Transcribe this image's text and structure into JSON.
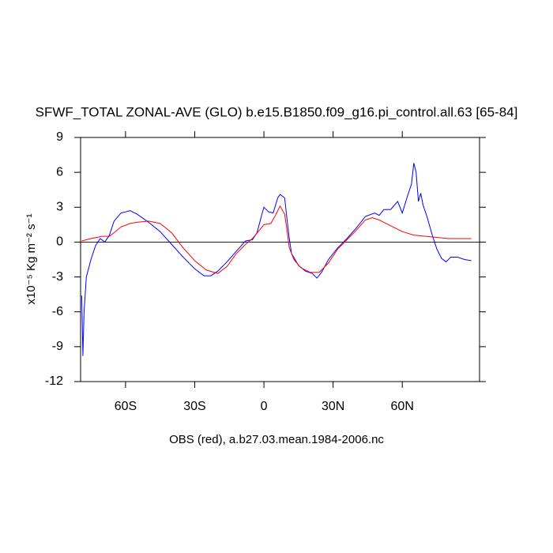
{
  "chart_data": {
    "type": "line",
    "title": "SFWF_TOTAL ZONAL-AVE (GLO) b.e15.B1850.f09_g16.pi_control.all.63 [65-84]",
    "xlabel": "OBS (red), a.b27.03.mean.1984-2006.nc",
    "ylabel": "x10⁻⁵ Kg m⁻² s⁻¹",
    "xlim": [
      -79.5,
      93.5
    ],
    "xticks": [
      {
        "value": -60,
        "label": "60S"
      },
      {
        "value": -30,
        "label": "30S"
      },
      0,
      {
        "value": 30,
        "label": "30N"
      },
      {
        "value": 60,
        "label": "60N"
      }
    ],
    "ylim": [
      -12,
      9
    ],
    "yticks": [
      -12,
      -9,
      -6,
      -3,
      0,
      3,
      6,
      9
    ],
    "zero_line": true,
    "series": [
      {
        "color": "#0000ff",
        "x": [
          -79,
          -78.5,
          -78,
          -77,
          -75,
          -73,
          -71,
          -69,
          -67,
          -65,
          -62,
          -58,
          -55,
          -50,
          -45,
          -40,
          -35,
          -30,
          -26,
          -23,
          -20,
          -16,
          -12,
          -8,
          -5,
          -3,
          -1,
          0,
          2,
          4,
          6,
          7,
          9,
          10,
          11,
          12,
          15,
          18,
          21,
          23,
          25,
          28,
          32,
          36,
          40,
          44,
          48,
          50,
          52,
          55,
          58,
          60,
          62,
          64,
          65,
          66,
          67,
          68,
          69,
          71,
          73,
          75,
          77,
          79,
          81,
          84,
          87,
          90
        ],
        "values": [
          -4.6,
          -9.8,
          -6,
          -3,
          -1.5,
          -0.3,
          0.3,
          0,
          0.6,
          1.8,
          2.5,
          2.7,
          2.4,
          1.7,
          0.9,
          -0.2,
          -1.3,
          -2.3,
          -2.9,
          -2.9,
          -2.5,
          -1.7,
          -0.8,
          0.1,
          0.2,
          0.8,
          2.3,
          3.0,
          2.6,
          2.5,
          3.8,
          4.1,
          3.8,
          2.0,
          0.3,
          -1.0,
          -2.0,
          -2.5,
          -2.7,
          -3.1,
          -2.6,
          -1.5,
          -0.5,
          0.3,
          1.2,
          2.2,
          2.5,
          2.3,
          2.8,
          2.8,
          3.5,
          2.5,
          3.8,
          5.0,
          6.8,
          6.0,
          3.5,
          4.2,
          3.2,
          2.0,
          0.6,
          -0.6,
          -1.4,
          -1.7,
          -1.3,
          -1.3,
          -1.5,
          -1.6
        ]
      },
      {
        "color": "#ff0000",
        "x": [
          -79,
          -75,
          -70,
          -67,
          -65,
          -62,
          -58,
          -55,
          -50,
          -45,
          -40,
          -35,
          -30,
          -25,
          -20,
          -16,
          -12,
          -8,
          -5,
          -2,
          0,
          3,
          5,
          7,
          9,
          10,
          11,
          13,
          16,
          20,
          24,
          28,
          32,
          36,
          40,
          44,
          47,
          50,
          53,
          56,
          60,
          65,
          70,
          75,
          80,
          85,
          90
        ],
        "values": [
          0.1,
          0.3,
          0.5,
          0.5,
          0.8,
          1.3,
          1.6,
          1.7,
          1.8,
          1.6,
          0.8,
          -0.5,
          -1.6,
          -2.4,
          -2.7,
          -2.1,
          -1.0,
          -0.2,
          0.3,
          1.0,
          1.5,
          1.6,
          2.3,
          3.1,
          2.4,
          1.0,
          -0.5,
          -1.5,
          -2.2,
          -2.6,
          -2.6,
          -1.8,
          -0.6,
          0.2,
          1.0,
          1.9,
          2.1,
          1.9,
          1.6,
          1.3,
          0.9,
          0.6,
          0.5,
          0.4,
          0.3,
          0.3,
          0.3
        ]
      }
    ]
  }
}
